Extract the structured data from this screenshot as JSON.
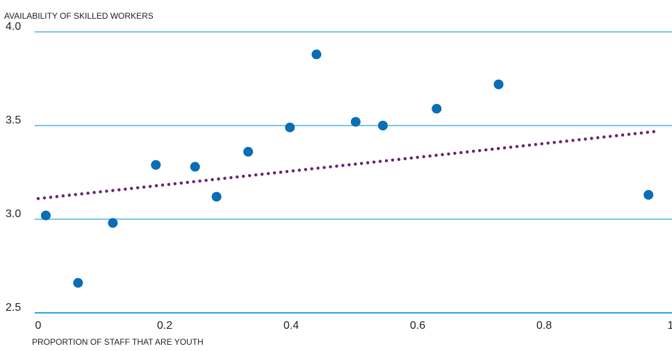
{
  "chart_data": {
    "type": "scatter",
    "title": "",
    "ylabel": "AVAILABILITY OF SKILLED WORKERS",
    "xlabel": "PROPORTION OF STAFF THAT ARE YOUTH",
    "xlim": [
      0,
      1
    ],
    "ylim": [
      2.5,
      4.0
    ],
    "x_ticks": [
      0,
      0.2,
      0.4,
      0.6,
      0.8,
      1
    ],
    "x_tick_labels": [
      "0",
      "0.2",
      "0.4",
      "0.6",
      "0.8",
      "1"
    ],
    "y_ticks": [
      2.5,
      3.0,
      3.5,
      4.0
    ],
    "y_tick_labels": [
      "2.5",
      "3.0",
      "3.5",
      "4.0"
    ],
    "grid": "horizontal",
    "points": [
      {
        "x": 0.012,
        "y": 3.02
      },
      {
        "x": 0.063,
        "y": 2.66
      },
      {
        "x": 0.118,
        "y": 2.98
      },
      {
        "x": 0.186,
        "y": 3.29
      },
      {
        "x": 0.248,
        "y": 3.28
      },
      {
        "x": 0.282,
        "y": 3.12
      },
      {
        "x": 0.332,
        "y": 3.36
      },
      {
        "x": 0.398,
        "y": 3.49
      },
      {
        "x": 0.44,
        "y": 3.88
      },
      {
        "x": 0.502,
        "y": 3.52
      },
      {
        "x": 0.545,
        "y": 3.5
      },
      {
        "x": 0.63,
        "y": 3.59
      },
      {
        "x": 0.728,
        "y": 3.72
      },
      {
        "x": 0.965,
        "y": 3.13
      }
    ],
    "trendline": {
      "style": "dotted",
      "x": [
        0,
        0.98
      ],
      "y": [
        3.11,
        3.47
      ]
    },
    "colors": {
      "points": "#0a6db5",
      "trendline": "#6b2370",
      "grid": "#29a3d6",
      "baseline": "#29a3d6",
      "text": "#222222"
    }
  }
}
